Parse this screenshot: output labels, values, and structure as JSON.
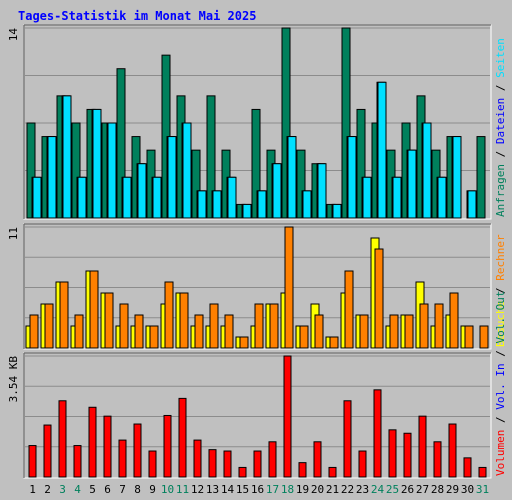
{
  "chart_data": [
    {
      "type": "bar",
      "title": "Tages-Statistik im Monat Mai 2025",
      "ymax_label": "14",
      "ylim": [
        0,
        14
      ],
      "right_labels": [
        {
          "text": "Anfragen",
          "color": "#00805c"
        },
        {
          "text": "Dateien",
          "color": "#0000ff"
        },
        {
          "text": "Seiten",
          "color": "#00e0ff"
        }
      ],
      "series": [
        {
          "name": "Anfragen",
          "color": "#00805c",
          "values": [
            7,
            6,
            9,
            7,
            8,
            7,
            11,
            6,
            5,
            12,
            9,
            5,
            9,
            5,
            1,
            8,
            5,
            14,
            5,
            4,
            1,
            14,
            8,
            7,
            5,
            7,
            9,
            5,
            6,
            0,
            6
          ]
        },
        {
          "name": "Dateien",
          "color": "#0000ff",
          "values": [
            3,
            6,
            9,
            3,
            8,
            7,
            3,
            4,
            3,
            6,
            7,
            2,
            2,
            3,
            1,
            2,
            4,
            6,
            2,
            4,
            1,
            6,
            3,
            10,
            3,
            5,
            7,
            3,
            6,
            2,
            0
          ]
        },
        {
          "name": "Seiten",
          "color": "#00e0ff",
          "values": [
            3,
            6,
            9,
            3,
            8,
            7,
            3,
            4,
            3,
            6,
            7,
            2,
            2,
            3,
            1,
            2,
            4,
            6,
            2,
            4,
            1,
            6,
            3,
            10,
            3,
            5,
            7,
            3,
            6,
            2,
            0
          ]
        }
      ]
    },
    {
      "type": "bar",
      "ymax_label": "11",
      "ylim": [
        0,
        11
      ],
      "right_labels": [
        {
          "text": "Besuche",
          "color": "#ffff00"
        },
        {
          "text": "Rechner",
          "color": "#ff8000"
        }
      ],
      "series": [
        {
          "name": "Besuche",
          "color": "#ffff00",
          "values": [
            2,
            4,
            6,
            2,
            7,
            5,
            2,
            2,
            2,
            4,
            5,
            2,
            2,
            2,
            1,
            2,
            4,
            5,
            2,
            4,
            1,
            5,
            3,
            10,
            2,
            3,
            6,
            2,
            3,
            2,
            0
          ]
        },
        {
          "name": "Rechner",
          "color": "#ff8000",
          "values": [
            3,
            4,
            6,
            3,
            7,
            5,
            4,
            3,
            2,
            6,
            5,
            3,
            4,
            3,
            1,
            4,
            4,
            11,
            2,
            3,
            1,
            7,
            3,
            9,
            3,
            3,
            4,
            4,
            5,
            2,
            2
          ]
        }
      ]
    },
    {
      "type": "bar",
      "ymax_label": "3.54 KB",
      "ylim": [
        0,
        3.54
      ],
      "right_labels": [
        {
          "text": "Volumen",
          "color": "#ff0000"
        },
        {
          "text": "Vol. In",
          "color": "#0000ff"
        },
        {
          "text": "Vol. Out",
          "color": "#00805c"
        }
      ],
      "series": [
        {
          "name": "Volumen",
          "color": "#ff0000",
          "values": [
            0.92,
            1.52,
            2.23,
            0.92,
            2.04,
            1.78,
            1.08,
            1.55,
            0.76,
            1.8,
            2.3,
            1.08,
            0.8,
            0.76,
            0.28,
            0.76,
            1.03,
            3.54,
            0.42,
            1.03,
            0.28,
            2.23,
            0.76,
            2.55,
            1.38,
            1.28,
            1.78,
            1.03,
            1.55,
            0.56,
            0.28
          ]
        }
      ]
    }
  ],
  "x_labels": [
    "1",
    "2",
    "3",
    "4",
    "5",
    "6",
    "7",
    "8",
    "9",
    "10",
    "11",
    "12",
    "13",
    "14",
    "15",
    "16",
    "17",
    "18",
    "19",
    "20",
    "21",
    "22",
    "23",
    "24",
    "25",
    "26",
    "27",
    "28",
    "29",
    "30",
    "31"
  ],
  "weekend_days": [
    "3",
    "4",
    "10",
    "11",
    "17",
    "18",
    "24",
    "25",
    "31"
  ],
  "colors": {
    "weekday_label": "#000000",
    "weekend_label": "#00805c",
    "title": "#0000ff",
    "panel_bg": "#c0c0c0",
    "grid": "#8c8c8c"
  }
}
